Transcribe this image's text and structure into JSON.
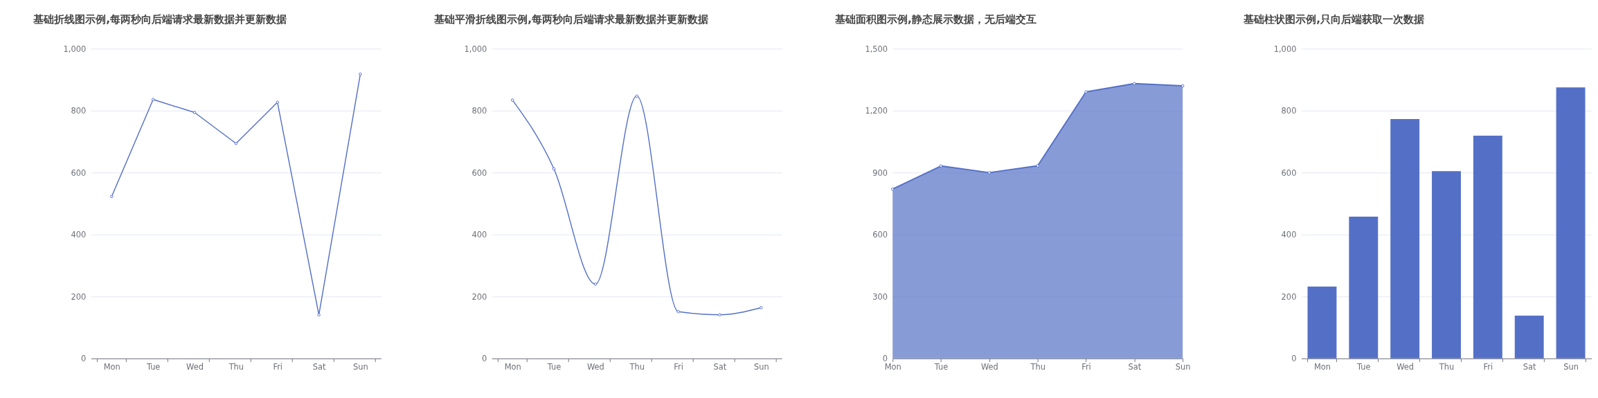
{
  "chart_data": [
    {
      "type": "line",
      "title": "基础折线图示例,每两秒向后端请求最新数据并更新数据",
      "categories": [
        "Mon",
        "Tue",
        "Wed",
        "Thu",
        "Fri",
        "Sat",
        "Sun"
      ],
      "series": [
        {
          "color": "#5470c6",
          "values": [
            523,
            836,
            794,
            694,
            827,
            141,
            918
          ]
        }
      ],
      "ylim": [
        0,
        1000
      ],
      "yticks": [
        0,
        200,
        400,
        600,
        800,
        {
          "value": 1000,
          "label": "1,000"
        }
      ],
      "grid": "y",
      "marker": "circle"
    },
    {
      "type": "line",
      "title": "基础平滑折线图示例,每两秒向后端请求最新数据并更新数据",
      "categories": [
        "Mon",
        "Tue",
        "Wed",
        "Thu",
        "Fri",
        "Sat",
        "Sun"
      ],
      "series": [
        {
          "color": "#5470c6",
          "values": [
            834,
            612,
            240,
            847,
            151,
            141,
            164
          ]
        }
      ],
      "ylim": [
        0,
        1000
      ],
      "yticks": [
        0,
        200,
        400,
        600,
        800,
        {
          "value": 1000,
          "label": "1,000"
        }
      ],
      "grid": "y",
      "marker": "circle"
    },
    {
      "type": "area",
      "title": "基础面积图示例,静态展示数据，无后端交互",
      "categories": [
        "Mon",
        "Tue",
        "Wed",
        "Thu",
        "Fri",
        "Sat",
        "Sun"
      ],
      "series": [
        {
          "color": "#5470c6",
          "values": [
            820,
            932,
            900,
            933,
            1291,
            1331,
            1320
          ]
        }
      ],
      "ylim": [
        0,
        1500
      ],
      "yticks": [
        0,
        300,
        600,
        900,
        {
          "value": 1200,
          "label": "1,200"
        },
        {
          "value": 1500,
          "label": "1,500"
        }
      ],
      "grid": "y",
      "marker": "circle"
    },
    {
      "type": "bar",
      "title": "基础柱状图示例,只向后端获取一次数据",
      "categories": [
        "Mon",
        "Tue",
        "Wed",
        "Thu",
        "Fri",
        "Sat",
        "Sun"
      ],
      "series": [
        {
          "color": "#5470c6",
          "values": [
            232,
            458,
            773,
            605,
            719,
            138,
            875
          ]
        }
      ],
      "ylim": [
        0,
        1000
      ],
      "yticks": [
        0,
        200,
        400,
        600,
        800,
        {
          "value": 1000,
          "label": "1,000"
        }
      ],
      "grid": "y"
    }
  ]
}
